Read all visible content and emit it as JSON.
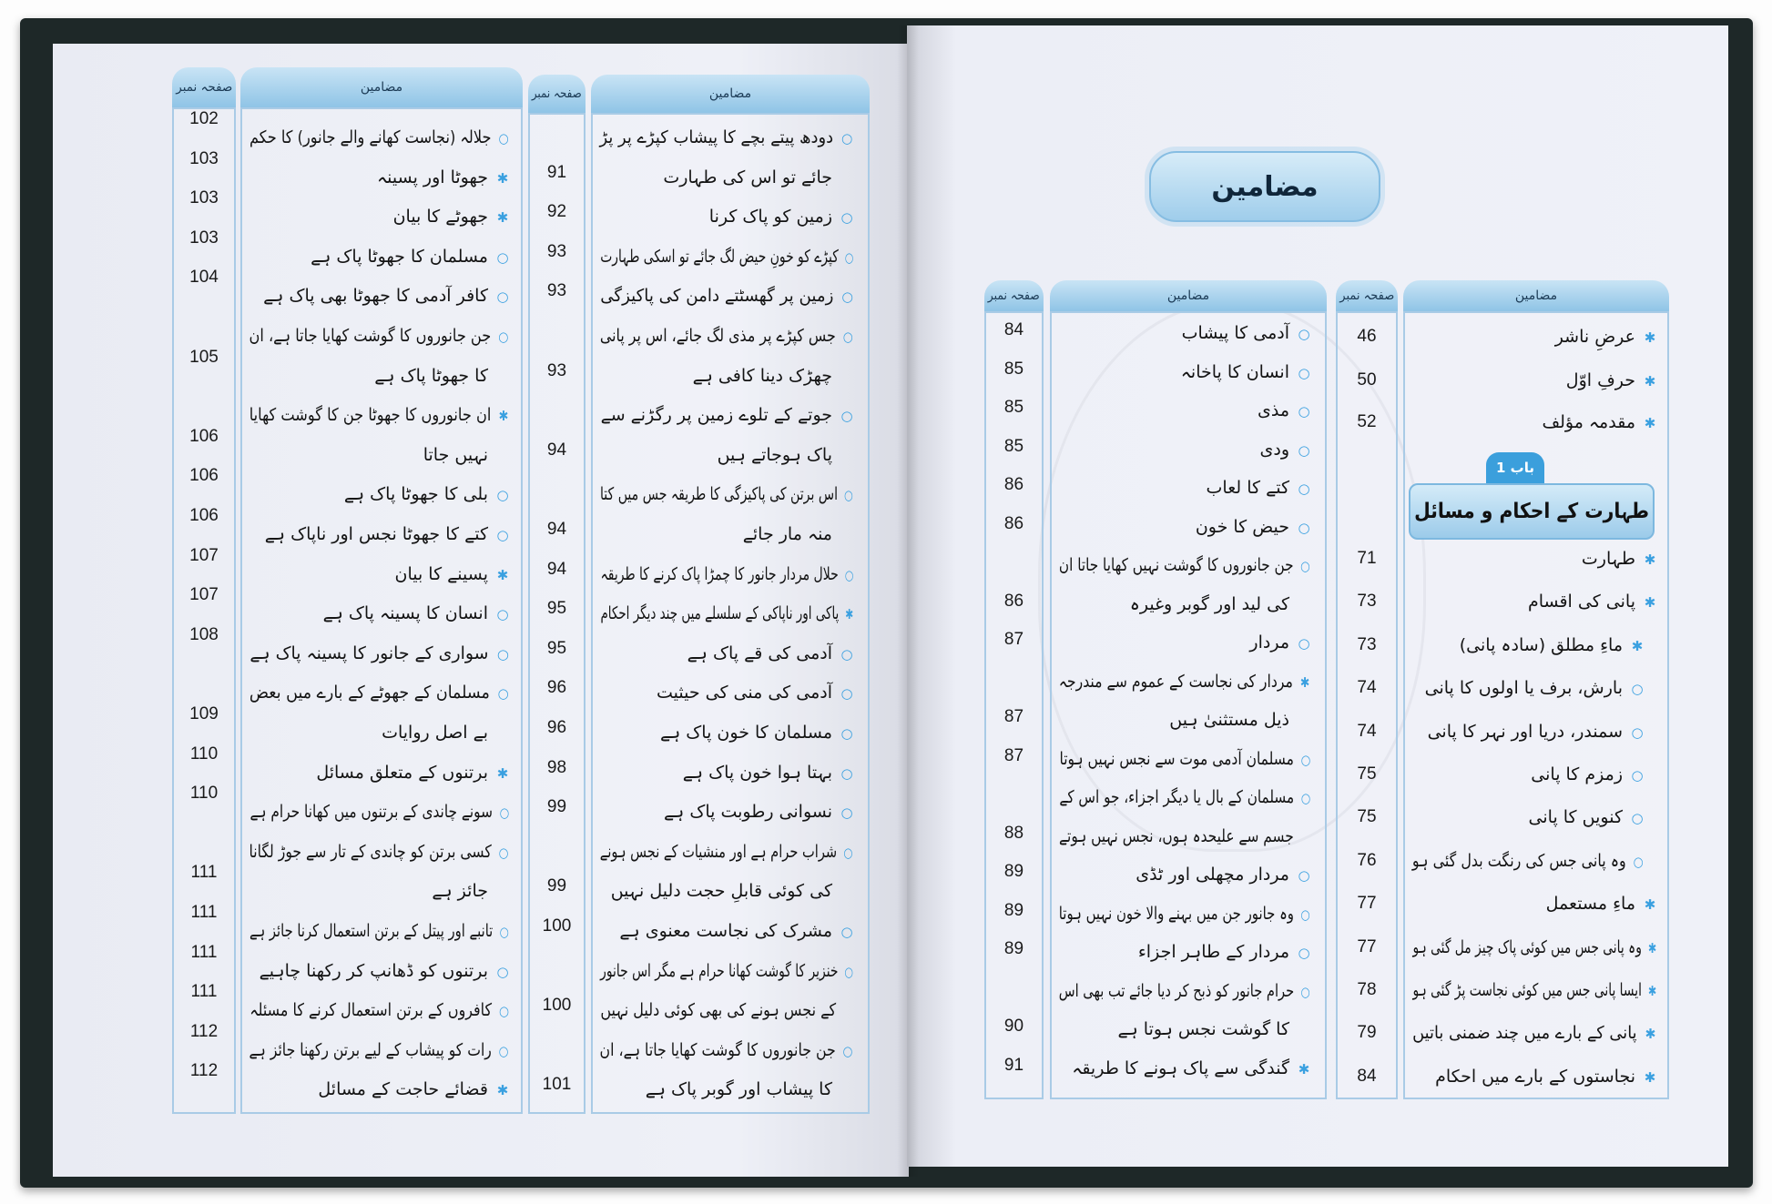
{
  "colors": {
    "accent": "#3aa0e0",
    "header": "#9fcdeb",
    "border": "#a9cbe6",
    "page": "#eceef6",
    "cover": "#1e2828"
  },
  "headers": {
    "contents": "مضامین",
    "page_no": "صفحہ نمبر"
  },
  "right_page": {
    "title": "مضامین",
    "front_matter": [
      {
        "bullet": "star",
        "text": "عرضِ ناشر",
        "page": "46"
      },
      {
        "bullet": "star",
        "text": "حرفِ اوّل",
        "page": "50"
      },
      {
        "bullet": "star",
        "text": "مقدمہ مؤلف",
        "page": "52"
      }
    ],
    "chapter": {
      "badge": "باب 1",
      "title": "طہارت کے احکام و مسائل"
    },
    "chapter_items": [
      {
        "bullet": "star",
        "text": "طہارت",
        "page": "71"
      },
      {
        "bullet": "star",
        "text": "پانی کی اقسام",
        "page": "73"
      },
      {
        "bullet": "star",
        "text": "ماءِ مطلق (سادہ پانی)",
        "page": "73"
      },
      {
        "bullet": "circle",
        "text": "بارش، برف یا اولوں کا پانی",
        "page": "74"
      },
      {
        "bullet": "circle",
        "text": "سمندر، دریا اور نہر کا پانی",
        "page": "74"
      },
      {
        "bullet": "circle",
        "text": "زمزم کا پانی",
        "page": "75"
      },
      {
        "bullet": "circle",
        "text": "کنویں کا پانی",
        "page": "75"
      },
      {
        "bullet": "circle",
        "text": "وہ پانی جس کی رنگت بدل گئی ہو",
        "page": "76"
      },
      {
        "bullet": "star",
        "text": "ماءِ مستعمل",
        "page": "77"
      },
      {
        "bullet": "star",
        "text": "وہ پانی جس میں کوئی پاک چیز مل گئی ہو",
        "page": "77"
      },
      {
        "bullet": "star",
        "text": "ایسا پانی جس میں کوئی نجاست پڑ گئی ہو",
        "page": "78"
      },
      {
        "bullet": "star",
        "text": "پانی کے بارے میں چند ضمنی باتیں",
        "page": "79"
      },
      {
        "bullet": "star",
        "text": "نجاستوں کے بارے میں احکام",
        "page": "84"
      }
    ],
    "second_column": {
      "lines": [
        {
          "bullet": "circle",
          "text": "آدمی کا پیشاب"
        },
        {
          "bullet": "circle",
          "text": "انسان کا پاخانہ"
        },
        {
          "bullet": "circle",
          "text": "مذی"
        },
        {
          "bullet": "circle",
          "text": "ودی"
        },
        {
          "bullet": "circle",
          "text": "کتے کا لعاب"
        },
        {
          "bullet": "circle",
          "text": "حیض کا خون"
        },
        {
          "bullet": "circle",
          "text": "جن جانوروں کا گوشت نہیں کھایا جاتا ان"
        },
        {
          "bullet": "none",
          "text": "کی لید اور گوبر وغیرہ"
        },
        {
          "bullet": "circle",
          "text": "مردار"
        },
        {
          "bullet": "star",
          "text": "مردار کی نجاست کے عموم سے مندرجہ"
        },
        {
          "bullet": "none",
          "text": "ذیل مستثنیٰ ہیں"
        },
        {
          "bullet": "circle",
          "text": "مسلمان آدمی موت سے نجس نہیں ہوتا"
        },
        {
          "bullet": "circle",
          "text": "مسلمان کے بال یا دیگر اجزاء، جو اس کے"
        },
        {
          "bullet": "none",
          "text": "جسم سے علیحدہ ہوں، نجس نہیں ہوتے"
        },
        {
          "bullet": "circle",
          "text": "مردار مچھلی اور ٹڈی"
        },
        {
          "bullet": "circle",
          "text": "وہ جانور جن میں بہنے والا خون نہیں ہوتا"
        },
        {
          "bullet": "circle",
          "text": "مردار کے طاہر اجزاء"
        },
        {
          "bullet": "circle",
          "text": "حرام جانور کو ذبح کر دیا جائے تب بھی اس"
        },
        {
          "bullet": "none",
          "text": "کا گوشت نجس ہوتا ہے"
        },
        {
          "bullet": "star",
          "text": "گندگی سے پاک ہونے کا طریقہ"
        }
      ],
      "pages": [
        "84",
        "85",
        "85",
        "85",
        "86",
        "86",
        null,
        "86",
        "87",
        null,
        "87",
        "87",
        null,
        "88",
        "89",
        "89",
        "89",
        null,
        "90",
        "91"
      ]
    }
  },
  "left_page": {
    "right_column": {
      "lines": [
        {
          "bullet": "circle",
          "text": "دودھ پیتے بچے کا پیشاب کپڑے پر پڑ"
        },
        {
          "bullet": "none",
          "text": "جائے تو اس کی طہارت"
        },
        {
          "bullet": "circle",
          "text": "زمین کو پاک کرنا"
        },
        {
          "bullet": "circle",
          "text": "کپڑے کو خونِ حیض لگ جائے تو اسکی طہارت"
        },
        {
          "bullet": "circle",
          "text": "زمین پر گھسٹتے دامن کی پاکیزگی"
        },
        {
          "bullet": "circle",
          "text": "جس کپڑے پر مذی لگ جائے، اس پر پانی"
        },
        {
          "bullet": "none",
          "text": "چھڑک دینا کافی ہے"
        },
        {
          "bullet": "circle",
          "text": "جوتے کے تلوے زمین پر رگڑنے سے"
        },
        {
          "bullet": "none",
          "text": "پاک ہوجاتے ہیں"
        },
        {
          "bullet": "circle",
          "text": "اس برتن کی پاکیزگی کا طریقہ جس میں کتا"
        },
        {
          "bullet": "none",
          "text": "منہ مار جائے"
        },
        {
          "bullet": "circle",
          "text": "حلال مردار جانور کا چمڑا پاک کرنے کا طریقہ"
        },
        {
          "bullet": "star",
          "text": "پاکی اور ناپاکی کے سلسلے میں چند دیگر احکام"
        },
        {
          "bullet": "circle",
          "text": "آدمی کی قے پاک ہے"
        },
        {
          "bullet": "circle",
          "text": "آدمی کی منی کی حیثیت"
        },
        {
          "bullet": "circle",
          "text": "مسلمان کا خون پاک ہے"
        },
        {
          "bullet": "circle",
          "text": "بہتا ہوا خون پاک ہے"
        },
        {
          "bullet": "circle",
          "text": "نسوانی رطوبت پاک ہے"
        },
        {
          "bullet": "circle",
          "text": "شراب حرام ہے اور منشیات کے نجس ہونے"
        },
        {
          "bullet": "none",
          "text": "کی کوئی قابلِ حجت دلیل نہیں"
        },
        {
          "bullet": "circle",
          "text": "مشرک کی نجاست معنوی ہے"
        },
        {
          "bullet": "circle",
          "text": "خنزیر کا گوشت کھانا حرام ہے مگر اس جانور"
        },
        {
          "bullet": "none",
          "text": "کے نجس ہونے کی بھی کوئی دلیل نہیں"
        },
        {
          "bullet": "circle",
          "text": "جن جانوروں کا گوشت کھایا جاتا ہے، ان"
        },
        {
          "bullet": "none",
          "text": "کا پیشاب اور گوبر پاک ہے"
        }
      ],
      "pages": [
        null,
        "91",
        "92",
        "93",
        "93",
        null,
        "93",
        null,
        "94",
        null,
        "94",
        "94",
        "95",
        "95",
        "96",
        "96",
        "98",
        "99",
        null,
        "99",
        "100",
        null,
        "100",
        null,
        "101"
      ]
    },
    "left_column": {
      "lines": [
        {
          "bullet": "circle",
          "text": "جلالہ (نجاست کھانے والے جانور) کا حکم"
        },
        {
          "bullet": "star",
          "text": "جھوٹا اور پسینہ"
        },
        {
          "bullet": "star",
          "text": "جھوٹے کا بیان"
        },
        {
          "bullet": "circle",
          "text": "مسلمان کا جھوٹا پاک ہے"
        },
        {
          "bullet": "circle",
          "text": "کافر آدمی کا جھوٹا بھی پاک ہے"
        },
        {
          "bullet": "circle",
          "text": "جن جانوروں کا گوشت کھایا جاتا ہے، ان"
        },
        {
          "bullet": "none",
          "text": "کا جھوٹا پاک ہے"
        },
        {
          "bullet": "star",
          "text": "ان جانوروں کا جھوٹا جن کا گوشت کھایا"
        },
        {
          "bullet": "none",
          "text": "نہیں جاتا"
        },
        {
          "bullet": "circle",
          "text": "بلی کا جھوٹا پاک ہے"
        },
        {
          "bullet": "circle",
          "text": "کتے کا جھوٹا نجس اور ناپاک ہے"
        },
        {
          "bullet": "star",
          "text": "پسینے کا بیان"
        },
        {
          "bullet": "circle",
          "text": "انسان کا پسینہ پاک ہے"
        },
        {
          "bullet": "circle",
          "text": "سواری کے جانور کا پسینہ پاک ہے"
        },
        {
          "bullet": "circle",
          "text": "مسلمان کے جھوٹے کے بارے میں بعض"
        },
        {
          "bullet": "none",
          "text": "بے اصل روایات"
        },
        {
          "bullet": "star",
          "text": "برتنوں کے متعلق مسائل"
        },
        {
          "bullet": "circle",
          "text": "سونے چاندی کے برتنوں میں کھانا حرام ہے"
        },
        {
          "bullet": "circle",
          "text": "کسی برتن کو چاندی کے تار سے جوڑ لگانا"
        },
        {
          "bullet": "none",
          "text": "جائز ہے"
        },
        {
          "bullet": "circle",
          "text": "تانبے اور پیتل کے برتن استعمال کرنا جائز ہے"
        },
        {
          "bullet": "circle",
          "text": "برتنوں کو ڈھانپ کر رکھنا چاہیے"
        },
        {
          "bullet": "circle",
          "text": "کافروں کے برتن استعمال کرنے کا مسئلہ"
        },
        {
          "bullet": "circle",
          "text": "رات کو پیشاب کے لیے برتن رکھنا جائز ہے"
        },
        {
          "bullet": "star",
          "text": "قضائے حاجت کے مسائل"
        }
      ],
      "pages": [
        "102",
        "103",
        "103",
        "103",
        "104",
        null,
        "105",
        null,
        "106",
        "106",
        "106",
        "107",
        "107",
        "108",
        null,
        "109",
        "110",
        "110",
        null,
        "111",
        "111",
        "111",
        "111",
        "112",
        "112"
      ]
    }
  }
}
